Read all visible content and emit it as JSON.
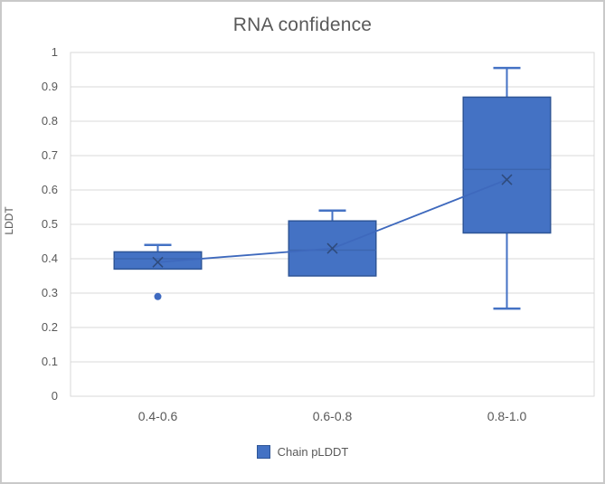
{
  "title": "RNA confidence",
  "ylabel": "LDDT",
  "legend": {
    "label": "Chain pLDDT"
  },
  "colors": {
    "box_fill": "#4472C4",
    "box_border": "#2E5597",
    "median": "#3C66B0",
    "whisker": "#4472C4",
    "mean_line": "#3E69BD",
    "mean_marker": "#2F4B7C",
    "outlier": "#3F6AC0",
    "gridline": "#D9D9D9",
    "plot_border": "#D9D9D9",
    "text": "#595959",
    "frame_border": "#C9C9C9"
  },
  "chart_data": {
    "type": "boxplot",
    "title": "RNA confidence",
    "xlabel": "",
    "ylabel": "LDDT",
    "categories": [
      "0.4-0.6",
      "0.6-0.8",
      "0.8-1.0"
    ],
    "ylim": [
      0,
      1
    ],
    "ytick_step": 0.1,
    "ytick_labels": [
      "0",
      "0.1",
      "0.2",
      "0.3",
      "0.4",
      "0.5",
      "0.6",
      "0.7",
      "0.8",
      "0.9",
      "1"
    ],
    "grid": true,
    "legend_position": "bottom",
    "series": [
      {
        "name": "Chain pLDDT",
        "show_mean_line": true,
        "show_mean_markers": true,
        "boxes": [
          {
            "category": "0.4-0.6",
            "whisker_low": 0.37,
            "q1": 0.37,
            "median": 0.4,
            "q3": 0.42,
            "whisker_high": 0.44,
            "mean": 0.39,
            "outliers": [
              0.29
            ]
          },
          {
            "category": "0.6-0.8",
            "whisker_low": 0.35,
            "q1": 0.35,
            "median": 0.425,
            "q3": 0.51,
            "whisker_high": 0.54,
            "mean": 0.43,
            "outliers": []
          },
          {
            "category": "0.8-1.0",
            "whisker_low": 0.255,
            "q1": 0.475,
            "median": 0.66,
            "q3": 0.87,
            "whisker_high": 0.955,
            "mean": 0.63,
            "outliers": []
          }
        ]
      }
    ]
  }
}
